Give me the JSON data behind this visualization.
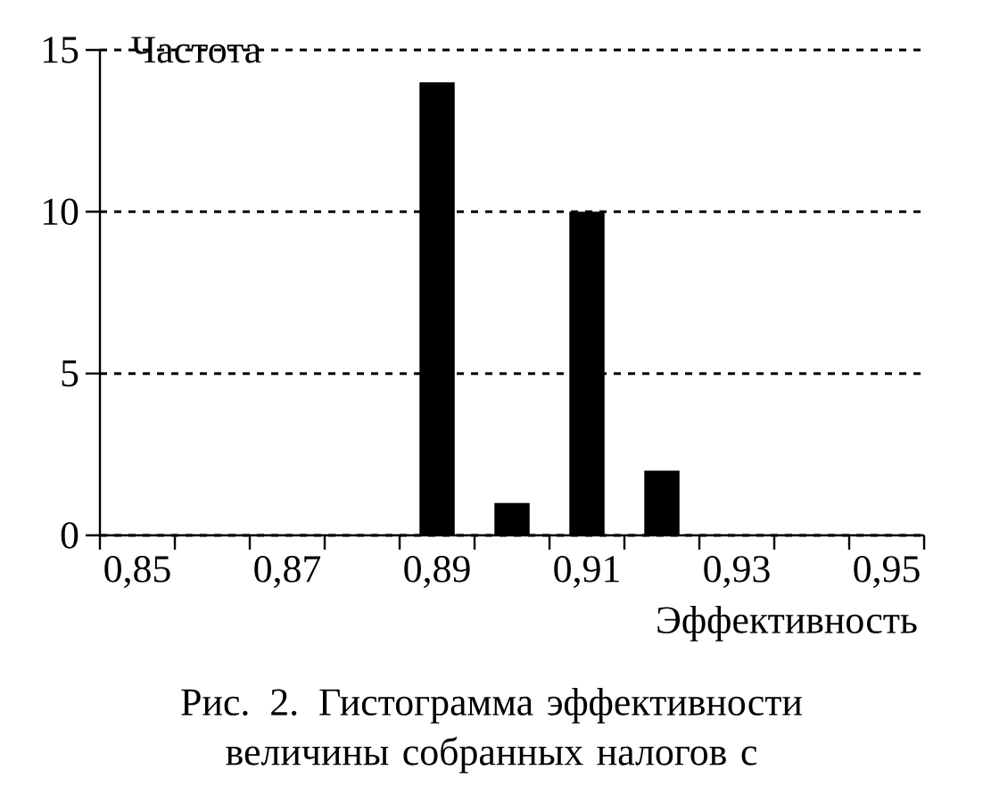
{
  "chart_data": {
    "type": "bar",
    "categories": [
      "0,85",
      null,
      "0,87",
      null,
      "0,89",
      null,
      "0,91",
      null,
      "0,93",
      null,
      "0,95"
    ],
    "values": [
      0,
      0,
      0,
      0,
      14,
      1,
      10,
      2,
      0,
      0,
      0
    ],
    "color": "#000000",
    "ylabel": "Частота",
    "xlabel": "Эффективность",
    "ylim": [
      0,
      15
    ],
    "yticks": [
      0,
      5,
      10,
      15
    ],
    "grid": "y",
    "annotations": [
      "Рис. 2. Гистограмма эффективности величины собранных налогов с"
    ]
  }
}
